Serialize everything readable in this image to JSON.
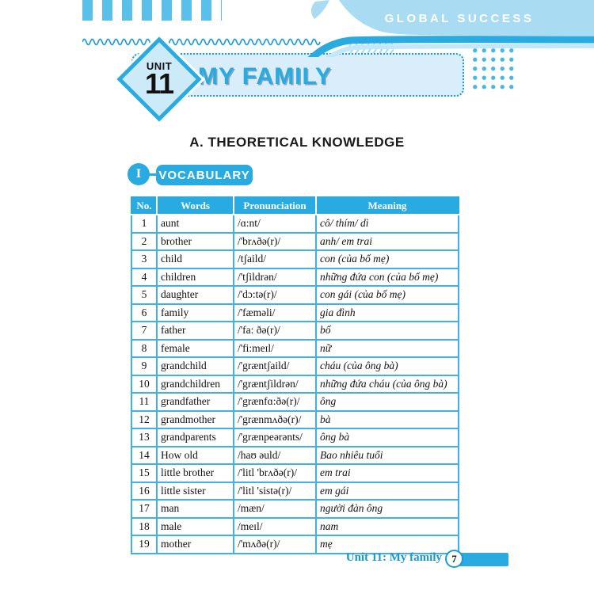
{
  "header": {
    "brand": "GLOBAL SUCCESS",
    "unit_label": "UNIT",
    "unit_number": "11",
    "unit_title": "MY FAMILY"
  },
  "section": {
    "heading": "A. THEORETICAL KNOWLEDGE",
    "badge_numeral": "I",
    "badge_label": "VOCABULARY"
  },
  "vocab_table": {
    "columns": [
      "No.",
      "Words",
      "Pronunciation",
      "Meaning"
    ],
    "rows": [
      {
        "no": "1",
        "word": "aunt",
        "pron": "/ɑ:nt/",
        "meaning": "cô/ thím/ dì"
      },
      {
        "no": "2",
        "word": "brother",
        "pron": "/'brʌðə(r)/",
        "meaning": "anh/ em trai"
      },
      {
        "no": "3",
        "word": "child",
        "pron": "/tʃaild/",
        "meaning": "con (của bố mẹ)"
      },
      {
        "no": "4",
        "word": "children",
        "pron": "/'tʃildrən/",
        "meaning": "những đứa con (của bố mẹ)"
      },
      {
        "no": "5",
        "word": "daughter",
        "pron": "/'dɔ:tə(r)/",
        "meaning": "con gái (của bố mẹ)"
      },
      {
        "no": "6",
        "word": "family",
        "pron": "/'fæməli/",
        "meaning": "gia đình"
      },
      {
        "no": "7",
        "word": "father",
        "pron": "/'fa: ðə(r)/",
        "meaning": "bố"
      },
      {
        "no": "8",
        "word": "female",
        "pron": "/'fi:meɪl/",
        "meaning": "nữ"
      },
      {
        "no": "9",
        "word": "grandchild",
        "pron": "/'græntʃaild/",
        "meaning": "cháu (của ông bà)"
      },
      {
        "no": "10",
        "word": "grandchildren",
        "pron": "/'græntʃildrən/",
        "meaning": "những đứa cháu (của ông bà)"
      },
      {
        "no": "11",
        "word": "grandfather",
        "pron": "/'grænfɑ:ðə(r)/",
        "meaning": "ông"
      },
      {
        "no": "12",
        "word": "grandmother",
        "pron": "/'grænmʌðə(r)/",
        "meaning": "bà"
      },
      {
        "no": "13",
        "word": "grandparents",
        "pron": "/'grænpeərənts/",
        "meaning": "ông bà"
      },
      {
        "no": "14",
        "word": "How old",
        "pron": "/haʊ əuld/",
        "meaning": "Bao nhiêu tuổi"
      },
      {
        "no": "15",
        "word": "little brother",
        "pron": "/'litl 'brʌðə(r)/",
        "meaning": "em trai"
      },
      {
        "no": "16",
        "word": "little sister",
        "pron": "/'litl 'sistə(r)/",
        "meaning": "em gái"
      },
      {
        "no": "17",
        "word": "man",
        "pron": "/mæn/",
        "meaning": "người đàn ông"
      },
      {
        "no": "18",
        "word": "male",
        "pron": "/meɪl/",
        "meaning": "nam"
      },
      {
        "no": "19",
        "word": "mother",
        "pron": "/'mʌðə(r)/",
        "meaning": "mẹ"
      }
    ]
  },
  "footer": {
    "label": "Unit 11: My family",
    "page_number": "7"
  },
  "colors": {
    "primary_blue": "#29abe2",
    "light_blue": "#a9dcf2",
    "pale_blue": "#d9eefa",
    "stripe_blue": "#58c0e9",
    "footer_blue": "#1797d2"
  }
}
